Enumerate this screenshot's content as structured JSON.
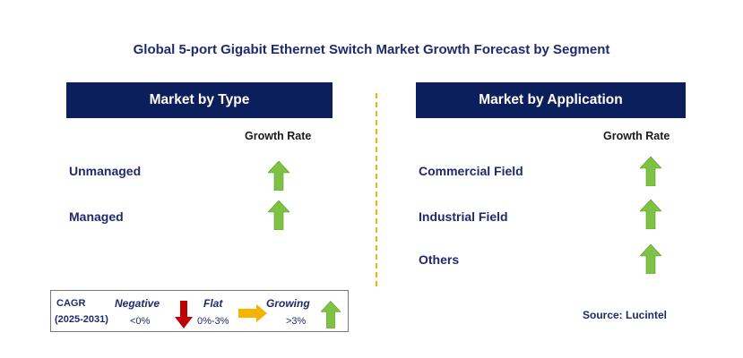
{
  "title": "Global 5-port Gigabit Ethernet Switch Market Growth Forecast by Segment",
  "left_panel": {
    "header": "Market by Type",
    "growth_label": "Growth Rate",
    "rows": [
      {
        "label": "Unmanaged",
        "trend": "growing"
      },
      {
        "label": "Managed",
        "trend": "growing"
      }
    ]
  },
  "right_panel": {
    "header": "Market by Application",
    "growth_label": "Growth Rate",
    "rows": [
      {
        "label": "Commercial Field",
        "trend": "growing"
      },
      {
        "label": "Industrial Field",
        "trend": "growing"
      },
      {
        "label": "Others",
        "trend": "growing"
      }
    ]
  },
  "legend": {
    "cagr": "CAGR",
    "period": "(2025-2031)",
    "negative_label": "Negative",
    "negative_value": "<0%",
    "flat_label": "Flat",
    "flat_value": "0%-3%",
    "growing_label": "Growing",
    "growing_value": ">3%"
  },
  "source": "Source: Lucintel",
  "colors": {
    "header_bg": "#0b1f5c",
    "text_navy": "#1f2a6b",
    "growing_arrow": "#7dc243",
    "negative_arrow": "#c00000",
    "flat_arrow": "#f4b400",
    "divider": "#f4b400"
  }
}
